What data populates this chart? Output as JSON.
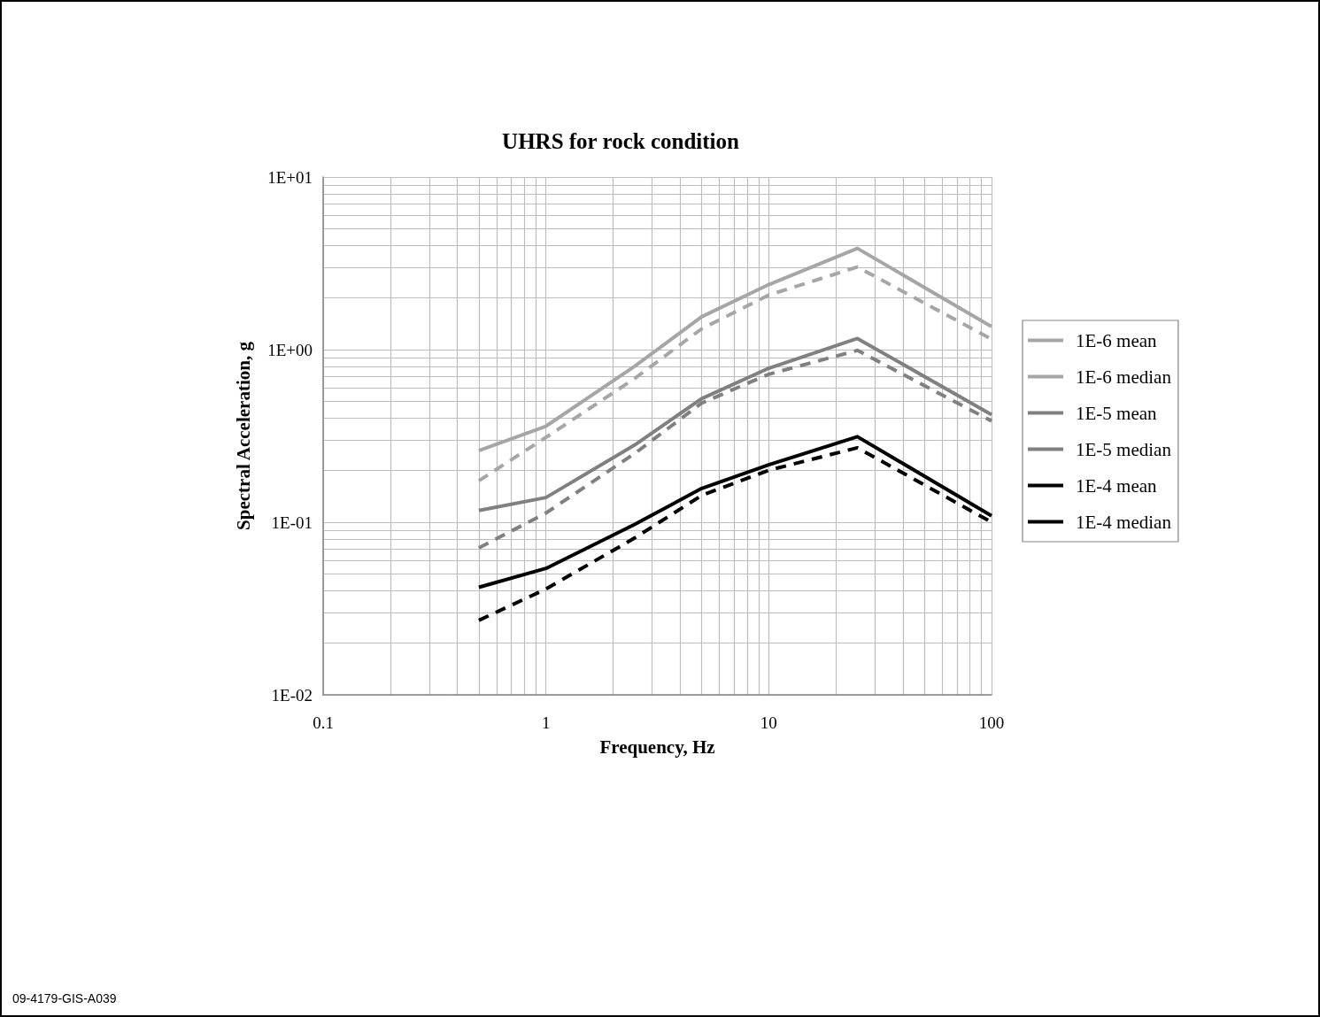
{
  "chart_data": {
    "type": "line",
    "title": "UHRS for rock condition",
    "xlabel": "Frequency, Hz",
    "ylabel": "Spectral Acceleration, g",
    "log": "xy",
    "grid": true,
    "legend": "right",
    "marker": "none",
    "xlim": [
      0.1,
      100
    ],
    "xticks": [
      0.1,
      1,
      10,
      100
    ],
    "ylim": [
      0.01,
      10
    ],
    "yticks": [
      {
        "value": 0.01,
        "label": "1E-02"
      },
      {
        "value": 0.1,
        "label": "1E-01"
      },
      {
        "value": 1,
        "label": "1E+00"
      },
      {
        "value": 10,
        "label": "1E+01"
      }
    ],
    "x": [
      0.5,
      1,
      2.5,
      5,
      10,
      25,
      100
    ],
    "series": [
      {
        "name": "1E-6 mean",
        "color": "#a6a6a6",
        "line_style": "solid",
        "values": [
          0.26,
          0.36,
          0.8,
          1.55,
          2.38,
          3.86,
          1.36
        ]
      },
      {
        "name": "1E-6 median",
        "color": "#a6a6a6",
        "line_style": "dashed",
        "values": [
          0.174,
          0.31,
          0.68,
          1.32,
          2.07,
          3.01,
          1.15
        ]
      },
      {
        "name": "1E-5 mean",
        "color": "#808080",
        "line_style": "solid",
        "values": [
          0.117,
          0.139,
          0.28,
          0.52,
          0.78,
          1.16,
          0.42
        ]
      },
      {
        "name": "1E-5 median",
        "color": "#808080",
        "line_style": "dashed",
        "values": [
          0.071,
          0.113,
          0.25,
          0.49,
          0.72,
          0.99,
          0.386
        ]
      },
      {
        "name": "1E-4 mean",
        "color": "#000000",
        "line_style": "solid",
        "values": [
          0.042,
          0.054,
          0.097,
          0.157,
          0.215,
          0.313,
          0.109
        ]
      },
      {
        "name": "1E-4 median",
        "color": "#000000",
        "line_style": "dashed",
        "values": [
          0.027,
          0.041,
          0.081,
          0.143,
          0.2,
          0.27,
          0.1
        ]
      }
    ],
    "annotations": [
      "09-4179-GIS-A039"
    ]
  }
}
